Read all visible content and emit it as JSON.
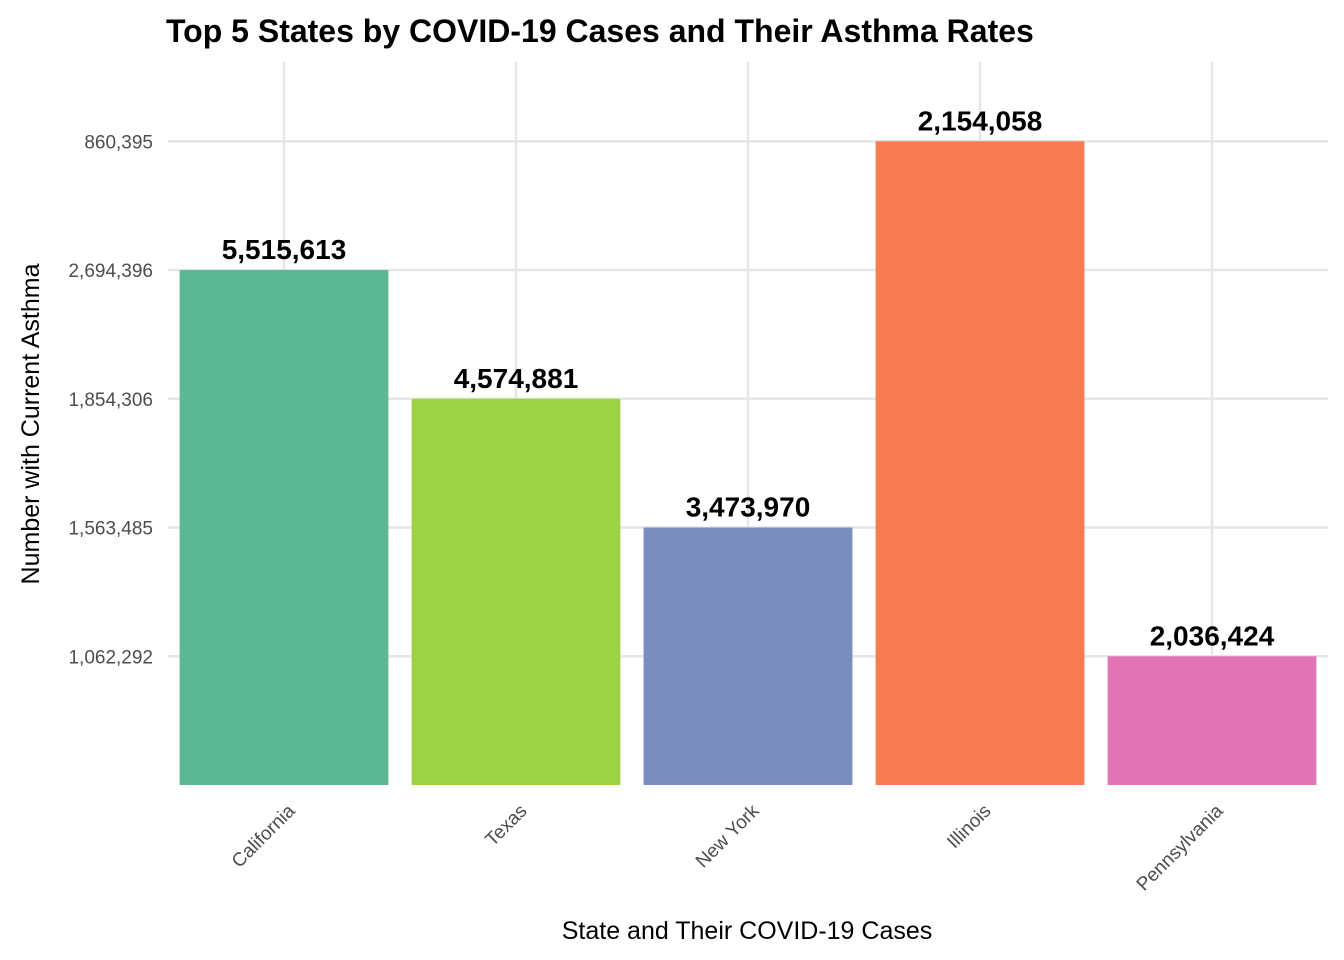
{
  "chart_data": {
    "type": "bar",
    "title": "Top 5 States by COVID-19 Cases and Their Asthma Rates",
    "xlabel": "State and Their COVID-19 Cases",
    "ylabel": "Number with Current Asthma",
    "categories": [
      "California",
      "Texas",
      "New York",
      "Illinois",
      "Pennsylvania"
    ],
    "values": [
      2694396,
      1854306,
      1563485,
      860395,
      1062292
    ],
    "data_labels": [
      "5,515,613",
      "4,574,881",
      "3,473,970",
      "2,154,058",
      "2,036,424"
    ],
    "value_rank": [
      4,
      3,
      2,
      5,
      1
    ],
    "y_ticks": [
      "1,062,292",
      "1,563,485",
      "1,854,306",
      "2,694,396",
      "860,395"
    ],
    "colors": [
      "#5ab994",
      "#9bd345",
      "#7b8dbe",
      "#f97b52",
      "#e074b5"
    ],
    "grid": true,
    "legend": "none"
  }
}
